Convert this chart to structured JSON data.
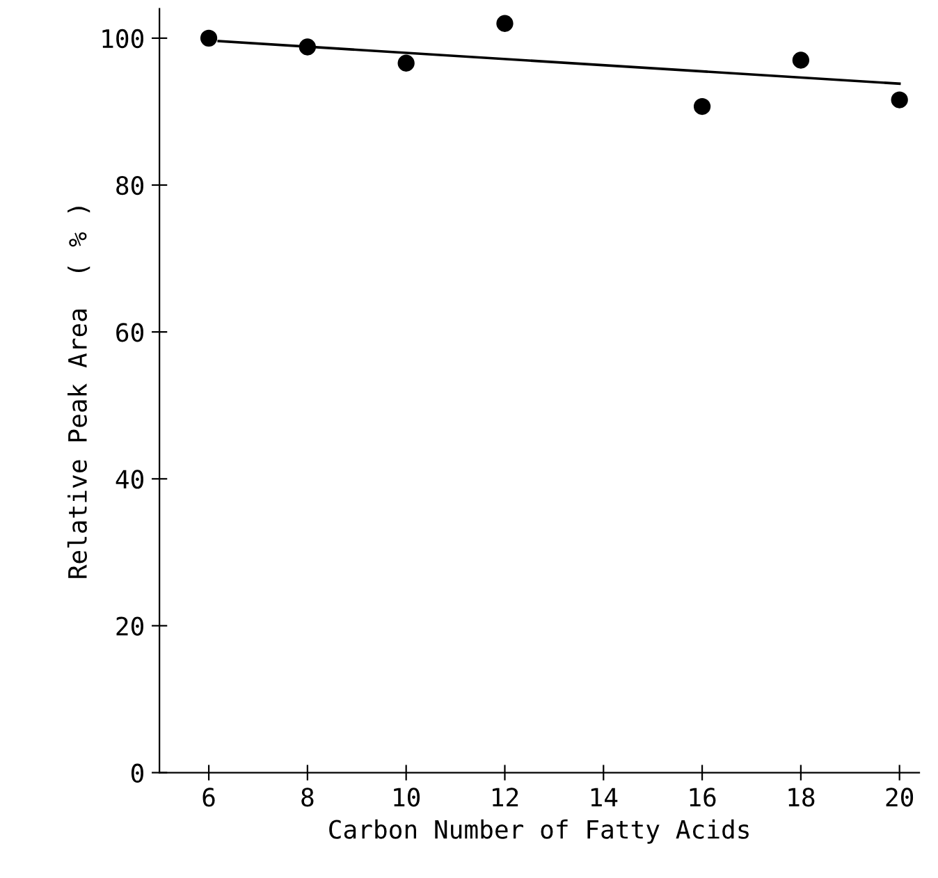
{
  "chart_data": {
    "type": "scatter",
    "xlabel": "Carbon Number of Fatty Acids",
    "ylabel": "Relative Peak Area  ( % )",
    "xlim": [
      5,
      20.4
    ],
    "ylim": [
      0,
      104
    ],
    "xticks": [
      6,
      8,
      10,
      12,
      14,
      16,
      18,
      20
    ],
    "yticks": [
      0,
      20,
      40,
      60,
      80,
      100
    ],
    "grid": false,
    "series": [
      {
        "color": "#000000",
        "marker": "circle",
        "x": [
          6,
          8,
          10,
          12,
          16,
          18,
          20
        ],
        "values": [
          100,
          98.8,
          96.6,
          102,
          90.7,
          97,
          91.6
        ]
      },
      {
        "type": "line",
        "color": "#000000",
        "marker": "none",
        "x": [
          6.2,
          20
        ],
        "values": [
          99.6,
          93.8
        ]
      }
    ]
  }
}
